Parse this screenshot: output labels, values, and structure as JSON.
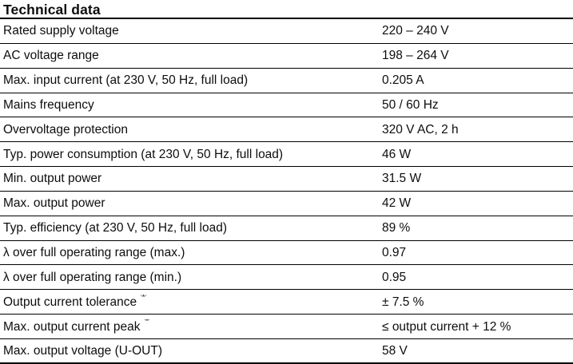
{
  "page": {
    "title": "Technical data"
  },
  "colors": {
    "background": "#ffffff",
    "text": "#0d0d0d",
    "rule": "#000000"
  },
  "table": {
    "rows": [
      {
        "label": "Rated supply voltage",
        "value": "220 – 240 V"
      },
      {
        "label": "AC voltage range",
        "value": "198 – 264 V"
      },
      {
        "label": "Max. input current (at 230 V, 50 Hz, full load)",
        "value": "0.205 A"
      },
      {
        "label": "Mains frequency",
        "value": "50 / 60 Hz"
      },
      {
        "label": "Overvoltage protection",
        "value": "320 V AC, 2 h"
      },
      {
        "label": "Typ. power consumption (at 230 V, 50 Hz, full load)",
        "value": "46 W"
      },
      {
        "label": "Min. output power",
        "value": "31.5 W"
      },
      {
        "label": "Max. output power",
        "value": "42 W"
      },
      {
        "label": "Typ. efficiency (at 230 V, 50 Hz, full load)",
        "value": "89 %"
      },
      {
        "label": "λ over full operating range (max.)",
        "value": "0.97"
      },
      {
        "label": "λ over full operating range (min.)",
        "value": "0.95"
      },
      {
        "label": "Output current tolerance",
        "sup": "①",
        "value": "± 7.5 %"
      },
      {
        "label": "Max. output current peak",
        "sup": "②",
        "value": "≤ output current + 12 %"
      },
      {
        "label": "Max. output voltage (U-OUT)",
        "value": "58 V"
      }
    ]
  }
}
